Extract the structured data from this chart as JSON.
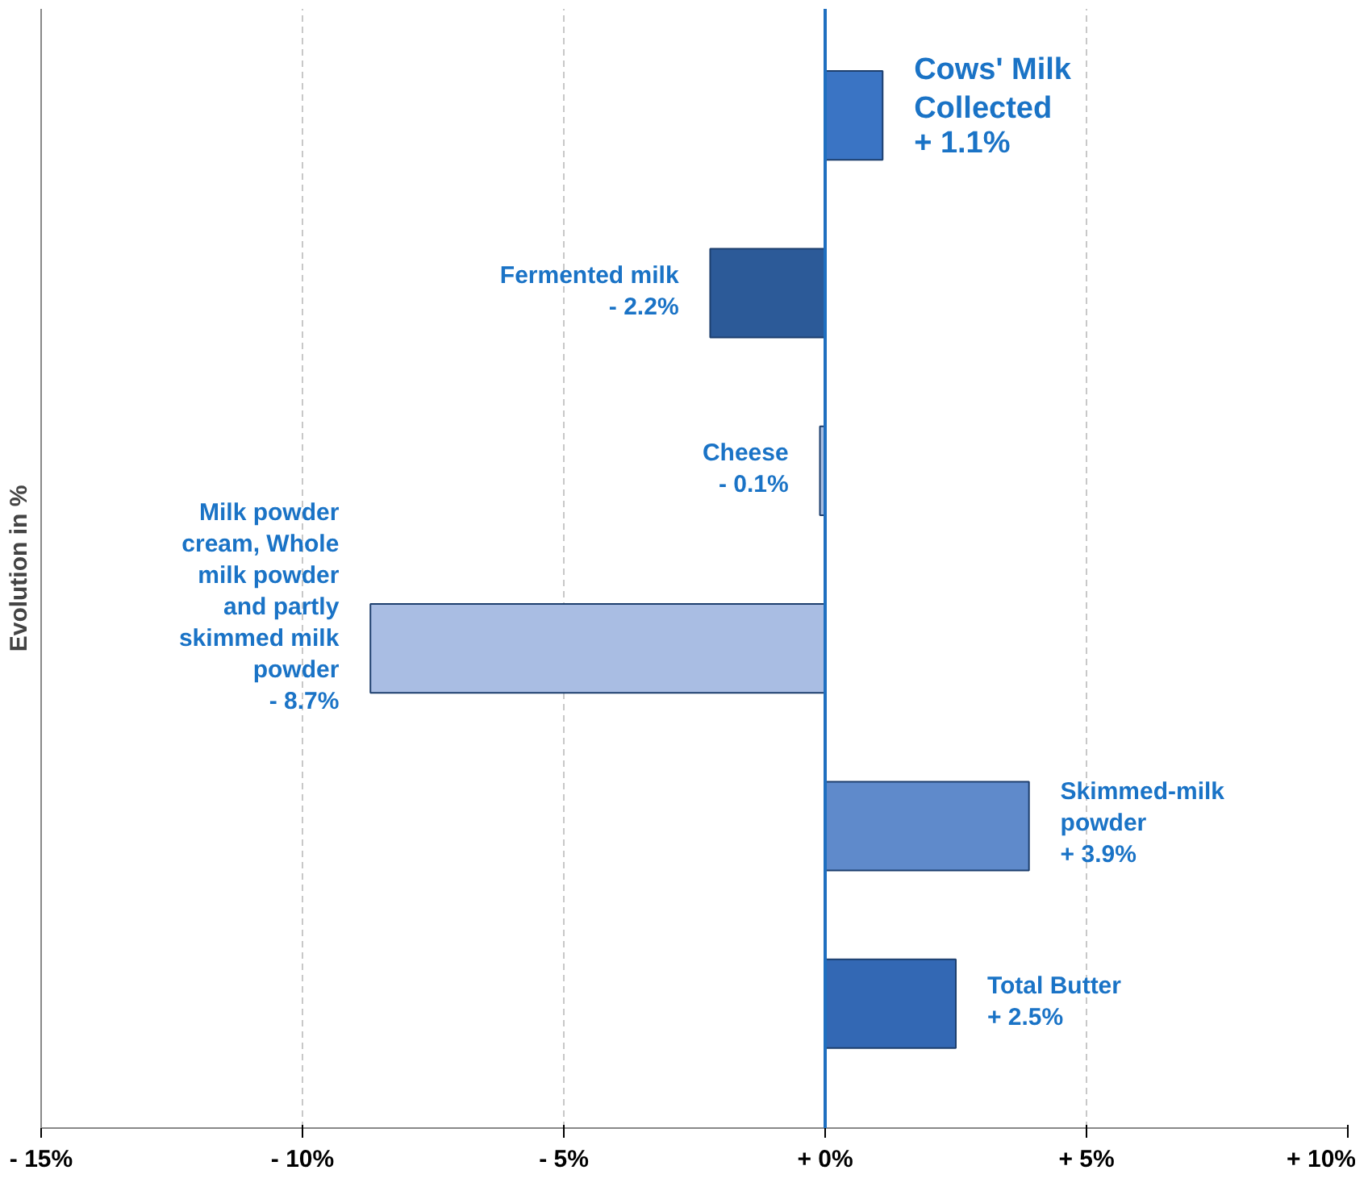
{
  "chart_data": {
    "type": "bar",
    "orientation": "horizontal",
    "ylabel": "Evolution in %",
    "categories": [
      "Cows' Milk Collected",
      "Fermented milk",
      "Cheese",
      "Milk powder cream, Whole milk powder and partly skimmed milk powder",
      "Skimmed-milk powder",
      "Total Butter"
    ],
    "values": [
      1.1,
      -2.2,
      -0.1,
      -8.7,
      3.9,
      2.5
    ],
    "value_labels": [
      "+ 1.1%",
      "- 2.2%",
      "- 0.1%",
      "- 8.7%",
      "+ 3.9%",
      "+ 2.5%"
    ],
    "colors": [
      "#3a74c4",
      "#2c5a98",
      "#a8bde0",
      "#a9bde3",
      "#5f8acb",
      "#3368b4"
    ],
    "xlim": [
      -15,
      10
    ],
    "xticks": [
      {
        "value": -15,
        "label": "- 15%"
      },
      {
        "value": -10,
        "label": "- 10%"
      },
      {
        "value": -5,
        "label": "- 5%"
      },
      {
        "value": 0,
        "label": "+ 0%"
      },
      {
        "value": 5,
        "label": "+ 5%"
      },
      {
        "value": 10,
        "label": "+ 10%"
      }
    ],
    "ref_lines": [
      {
        "axis": "x",
        "value": 0,
        "color": "#1f6fc0"
      }
    ],
    "grid": "x",
    "tick_labels": "x"
  }
}
